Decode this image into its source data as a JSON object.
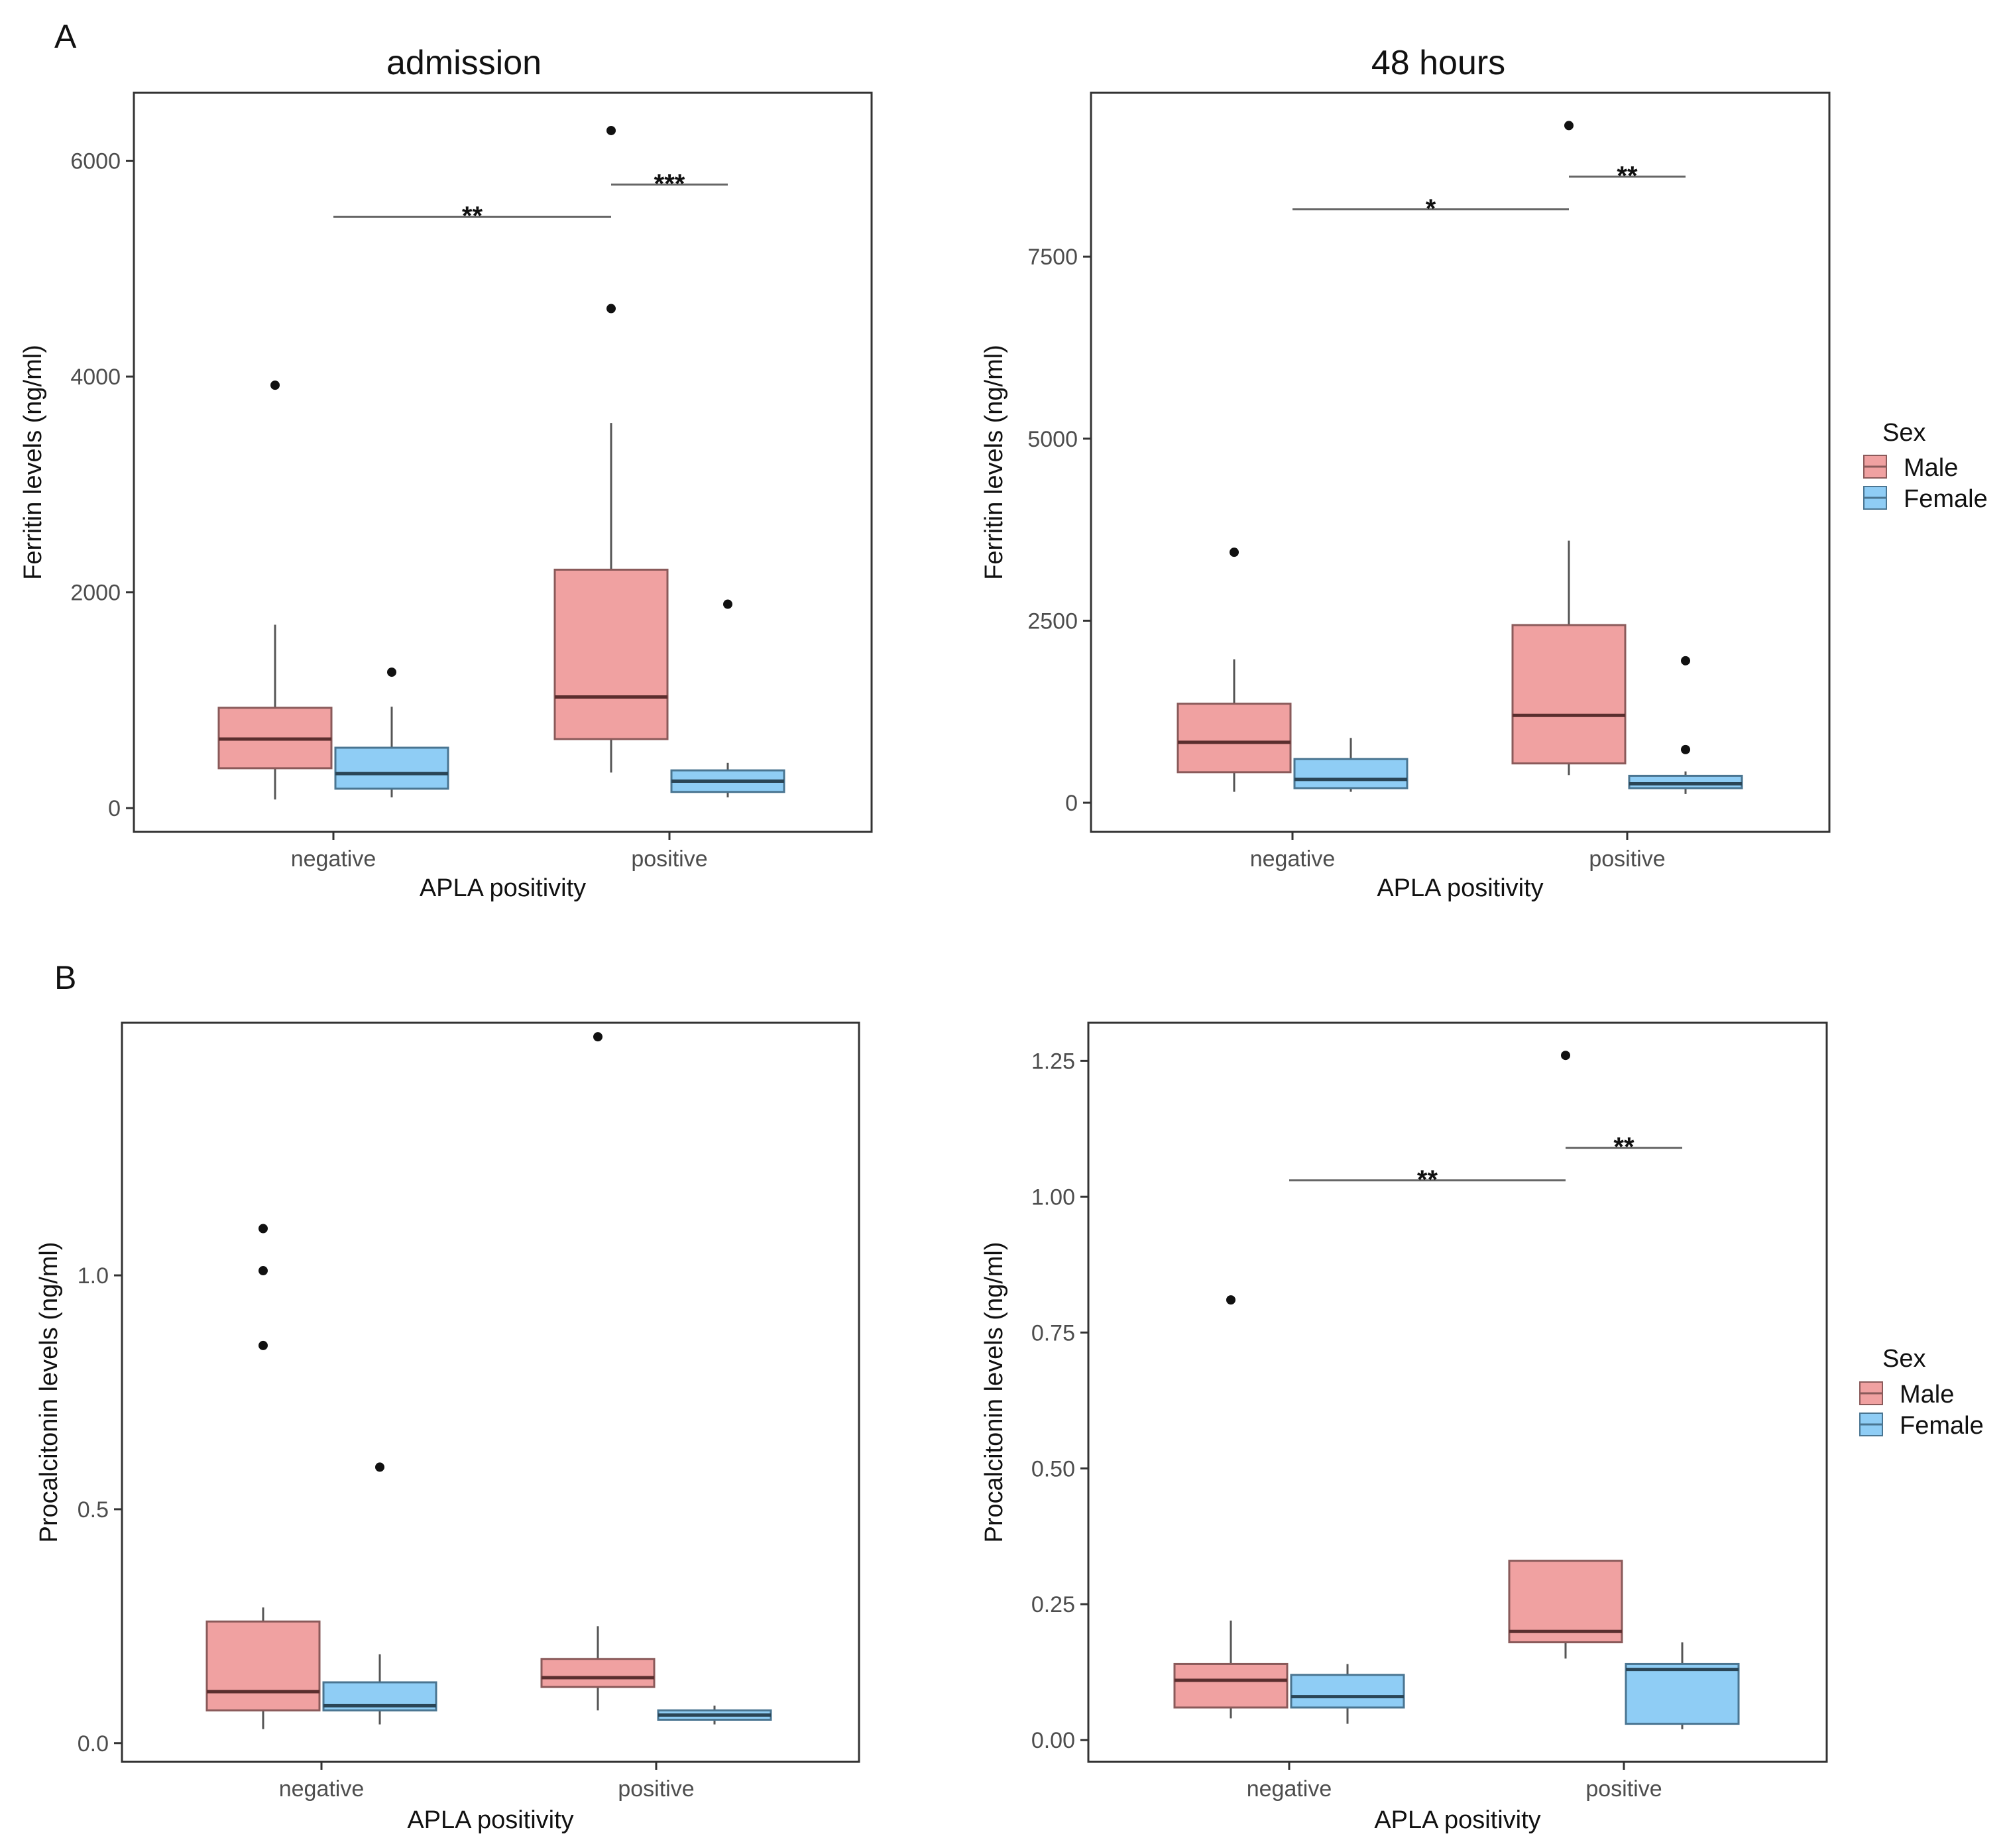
{
  "figure": {
    "panel_letters": [
      "A",
      "B"
    ],
    "legend": {
      "title": "Sex",
      "entries": [
        {
          "label": "Male",
          "fill": "#f0a1a1",
          "stroke": "#8a5a5a"
        },
        {
          "label": "Female",
          "fill": "#8fcdf5",
          "stroke": "#4a7591"
        }
      ]
    }
  },
  "chart_data": [
    {
      "type": "box",
      "title": "admission",
      "xlabel": "APLA positivity",
      "ylabel": "Ferritin levels (ng/ml)",
      "categories": [
        "negative",
        "positive"
      ],
      "ylim": [
        -220,
        6630
      ],
      "yticks": [
        0,
        2000,
        4000,
        6000
      ],
      "ytick_labels": [
        "0",
        "2000",
        "4000",
        "6000"
      ],
      "series": [
        {
          "name": "Male",
          "boxes": [
            {
              "category": "negative",
              "whisker_low": 80,
              "q1": 370,
              "median": 640,
              "q3": 930,
              "whisker_high": 1700,
              "outliers": [
                3920
              ]
            },
            {
              "category": "positive",
              "whisker_low": 330,
              "q1": 640,
              "median": 1030,
              "q3": 2210,
              "whisker_high": 3570,
              "outliers": [
                4630,
                6280
              ]
            }
          ]
        },
        {
          "name": "Female",
          "boxes": [
            {
              "category": "negative",
              "whisker_low": 100,
              "q1": 180,
              "median": 320,
              "q3": 560,
              "whisker_high": 940,
              "outliers": [
                1260
              ]
            },
            {
              "category": "positive",
              "whisker_low": 100,
              "q1": 150,
              "median": 250,
              "q3": 350,
              "whisker_high": 420,
              "outliers": [
                1890
              ]
            }
          ]
        }
      ],
      "significance": [
        {
          "label": "**",
          "from": "negative:center",
          "to": "positive:Male",
          "y": 5480
        },
        {
          "label": "***",
          "from": "positive:Male",
          "to": "positive:Female",
          "y": 5780
        }
      ]
    },
    {
      "type": "box",
      "title": "48 hours",
      "xlabel": "APLA positivity",
      "ylabel": "Ferritin levels (ng/ml)",
      "categories": [
        "negative",
        "positive"
      ],
      "ylim": [
        -400,
        9750
      ],
      "yticks": [
        0,
        2500,
        5000,
        7500
      ],
      "ytick_labels": [
        "0",
        "2500",
        "5000",
        "7500"
      ],
      "series": [
        {
          "name": "Male",
          "boxes": [
            {
              "category": "negative",
              "whisker_low": 150,
              "q1": 420,
              "median": 830,
              "q3": 1360,
              "whisker_high": 1970,
              "outliers": [
                3440
              ]
            },
            {
              "category": "positive",
              "whisker_low": 380,
              "q1": 540,
              "median": 1200,
              "q3": 2440,
              "whisker_high": 3600,
              "outliers": [
                9300
              ]
            }
          ]
        },
        {
          "name": "Female",
          "boxes": [
            {
              "category": "negative",
              "whisker_low": 150,
              "q1": 200,
              "median": 320,
              "q3": 600,
              "whisker_high": 890,
              "outliers": []
            },
            {
              "category": "positive",
              "whisker_low": 120,
              "q1": 200,
              "median": 260,
              "q3": 370,
              "whisker_high": 430,
              "outliers": [
                730,
                1950
              ]
            }
          ]
        }
      ],
      "significance": [
        {
          "label": "*",
          "from": "negative:center",
          "to": "positive:Male",
          "y": 8150
        },
        {
          "label": "**",
          "from": "positive:Male",
          "to": "positive:Female",
          "y": 8600
        }
      ]
    },
    {
      "type": "box",
      "title": "",
      "xlabel": "APLA positivity",
      "ylabel": "Procalcitonin levels (ng/ml)",
      "categories": [
        "negative",
        "positive"
      ],
      "ylim": [
        -0.04,
        1.54
      ],
      "yticks": [
        0,
        0.5,
        1.0
      ],
      "ytick_labels": [
        "0.0",
        "0.5",
        "1.0"
      ],
      "series": [
        {
          "name": "Male",
          "boxes": [
            {
              "category": "negative",
              "whisker_low": 0.03,
              "q1": 0.07,
              "median": 0.11,
              "q3": 0.26,
              "whisker_high": 0.29,
              "outliers": [
                0.85,
                1.01,
                1.1
              ]
            },
            {
              "category": "positive",
              "whisker_low": 0.07,
              "q1": 0.12,
              "median": 0.14,
              "q3": 0.18,
              "whisker_high": 0.25,
              "outliers": [
                1.51
              ]
            }
          ]
        },
        {
          "name": "Female",
          "boxes": [
            {
              "category": "negative",
              "whisker_low": 0.04,
              "q1": 0.07,
              "median": 0.08,
              "q3": 0.13,
              "whisker_high": 0.19,
              "outliers": [
                0.59
              ]
            },
            {
              "category": "positive",
              "whisker_low": 0.04,
              "q1": 0.05,
              "median": 0.06,
              "q3": 0.07,
              "whisker_high": 0.08,
              "outliers": []
            }
          ]
        }
      ],
      "significance": []
    },
    {
      "type": "box",
      "title": "",
      "xlabel": "APLA positivity",
      "ylabel": "Procalcitonin levels (ng/ml)",
      "categories": [
        "negative",
        "positive"
      ],
      "ylim": [
        -0.04,
        1.32
      ],
      "yticks": [
        0,
        0.25,
        0.5,
        0.75,
        1.0,
        1.25
      ],
      "ytick_labels": [
        "0.00",
        "0.25",
        "0.50",
        "0.75",
        "1.00",
        "1.25"
      ],
      "series": [
        {
          "name": "Male",
          "boxes": [
            {
              "category": "negative",
              "whisker_low": 0.04,
              "q1": 0.06,
              "median": 0.11,
              "q3": 0.14,
              "whisker_high": 0.22,
              "outliers": [
                0.81
              ]
            },
            {
              "category": "positive",
              "whisker_low": 0.15,
              "q1": 0.18,
              "median": 0.2,
              "q3": 0.33,
              "whisker_high": 0.33,
              "outliers": [
                1.26
              ]
            }
          ]
        },
        {
          "name": "Female",
          "boxes": [
            {
              "category": "negative",
              "whisker_low": 0.03,
              "q1": 0.06,
              "median": 0.08,
              "q3": 0.12,
              "whisker_high": 0.14,
              "outliers": []
            },
            {
              "category": "positive",
              "whisker_low": 0.02,
              "q1": 0.03,
              "median": 0.13,
              "q3": 0.14,
              "whisker_high": 0.18,
              "outliers": []
            }
          ]
        }
      ],
      "significance": [
        {
          "label": "**",
          "from": "negative:center",
          "to": "positive:Male",
          "y": 1.03
        },
        {
          "label": "**",
          "from": "positive:Male",
          "to": "positive:Female",
          "y": 1.09
        }
      ]
    }
  ]
}
